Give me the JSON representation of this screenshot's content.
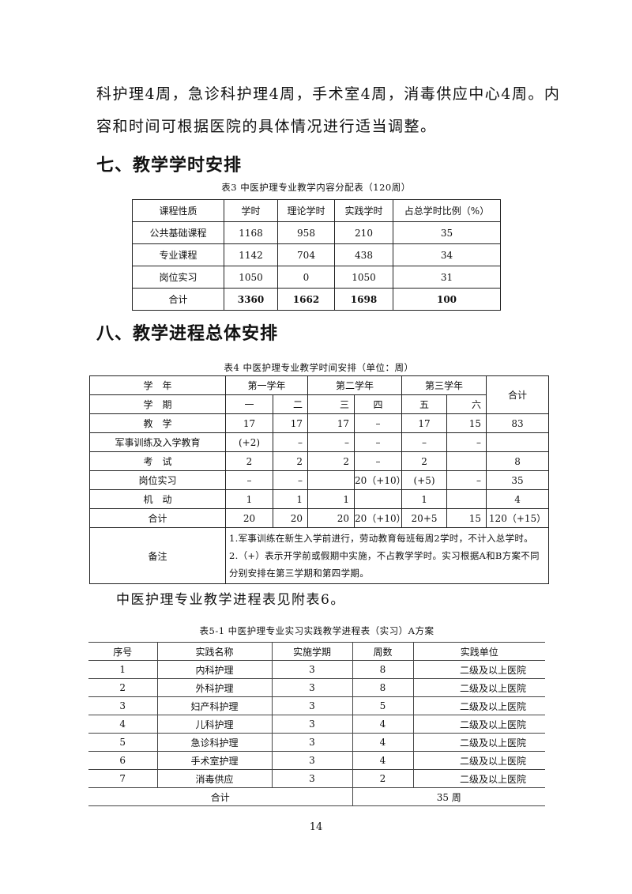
{
  "intro_lines": [
    "科护理4周，急诊科护理4周，手术室4周，消毒供应中心4周。内",
    "容和时间可根据医院的具体情况进行适当调整。"
  ],
  "section7": {
    "heading": "七、教学学时安排"
  },
  "table3": {
    "caption": "表3 中医护理专业教学内容分配表（120周）",
    "headers": [
      "课程性质",
      "学时",
      "理论学时",
      "实践学时",
      "占总学时比例（%）"
    ],
    "rows": [
      [
        "公共基础课程",
        "1168",
        "958",
        "210",
        "35"
      ],
      [
        "专业课程",
        "1142",
        "704",
        "438",
        "34"
      ],
      [
        "岗位实习",
        "1050",
        "0",
        "1050",
        "31"
      ]
    ],
    "total": [
      "合计",
      "3360",
      "1662",
      "1698",
      "100"
    ]
  },
  "section8": {
    "heading": "八、教学进程总体安排"
  },
  "table4": {
    "caption": "表4 中医护理专业教学时间安排（单位：周）",
    "year_label": "学　年",
    "years": [
      "第一学年",
      "第二学年",
      "第三学年"
    ],
    "total_label": "合计",
    "term_label": "学　期",
    "terms": [
      "一",
      "二",
      "三",
      "四",
      "五",
      "六"
    ],
    "rows": [
      {
        "label": "教　学",
        "values": [
          "17",
          "17",
          "17",
          "–",
          "17",
          "15",
          "83"
        ]
      },
      {
        "label": "军事训练及入学教育",
        "values": [
          "(+2)",
          "–",
          "–",
          "–",
          "–",
          "–",
          ""
        ]
      },
      {
        "label": "考　试",
        "values": [
          "2",
          "2",
          "2",
          "–",
          "2",
          "",
          "8"
        ]
      },
      {
        "label": "岗位实习",
        "values": [
          "–",
          "–",
          "",
          "20（+10）",
          "(+5)",
          "–",
          "35"
        ]
      },
      {
        "label": "机　动",
        "values": [
          "1",
          "1",
          "1",
          "",
          "1",
          "",
          "4"
        ]
      },
      {
        "label": "合计",
        "values": [
          "20",
          "20",
          "20",
          "20（+10）",
          "20+5",
          "15",
          "120（+15）"
        ]
      }
    ],
    "note_label": "备注",
    "notes": [
      "1.军事训练在新生入学前进行，劳动教育每班每周2学时，不计入总学时。",
      "2.（+）表示开学前或假期中实施，不占教学学时。实习根据A和B方案不同分别安排在第三学期和第四学期。"
    ]
  },
  "ref_text": "中医护理专业教学进程表见附表6。",
  "table5": {
    "caption": "表5-1 中医护理专业实习实践教学进程表（实习）A方案",
    "headers": [
      "序号",
      "实践名称",
      "实施学期",
      "周数",
      "实践单位"
    ],
    "rows": [
      [
        "1",
        "内科护理",
        "3",
        "8",
        "二级及以上医院"
      ],
      [
        "2",
        "外科护理",
        "3",
        "8",
        "二级及以上医院"
      ],
      [
        "3",
        "妇产科护理",
        "3",
        "5",
        "二级及以上医院"
      ],
      [
        "4",
        "儿科护理",
        "3",
        "4",
        "二级及以上医院"
      ],
      [
        "5",
        "急诊科护理",
        "3",
        "4",
        "二级及以上医院"
      ],
      [
        "6",
        "手术室护理",
        "3",
        "4",
        "二级及以上医院"
      ],
      [
        "7",
        "消毒供应",
        "3",
        "2",
        "二级及以上医院"
      ]
    ],
    "total_label": "合计",
    "total_value": "35 周"
  },
  "page_number": "14"
}
